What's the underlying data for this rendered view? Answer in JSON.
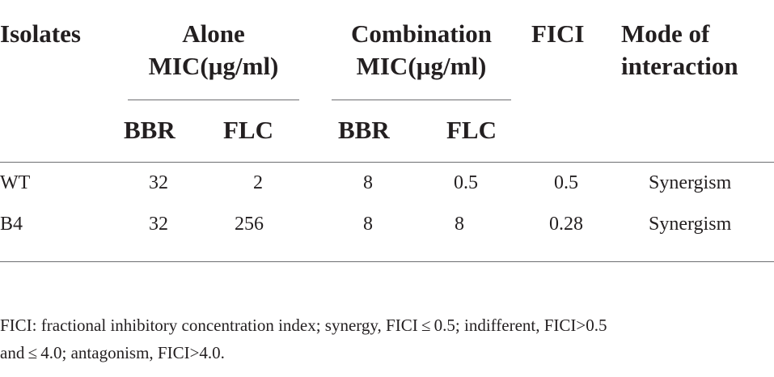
{
  "table": {
    "headers": {
      "isolates": "Isolates",
      "alone_line1": "Alone",
      "alone_line2": "MIC(µg/ml)",
      "combination_line1": "Combination",
      "combination_line2": "MIC(µg/ml)",
      "fici": "FICI",
      "mode_line1": "Mode of",
      "mode_line2": "interaction"
    },
    "subheaders": {
      "alone_bbr": "BBR",
      "alone_flc": "FLC",
      "combo_bbr": "BBR",
      "combo_flc": "FLC"
    },
    "rows": [
      {
        "isolate": "WT",
        "alone_bbr": "32",
        "alone_flc": "2",
        "combo_bbr": "8",
        "combo_flc": "0.5",
        "fici": "0.5",
        "mode": "Synergism"
      },
      {
        "isolate": "B4",
        "alone_bbr": "32",
        "alone_flc": "256",
        "combo_bbr": "8",
        "combo_flc": "8",
        "fici": "0.28",
        "mode": "Synergism"
      }
    ]
  },
  "footnote": {
    "line1": "FICI: fractional inhibitory concentration index; synergy, FICI ≤ 0.5; indifferent, FICI>0.5",
    "line2": "and ≤ 4.0; antagonism, FICI>4.0."
  }
}
